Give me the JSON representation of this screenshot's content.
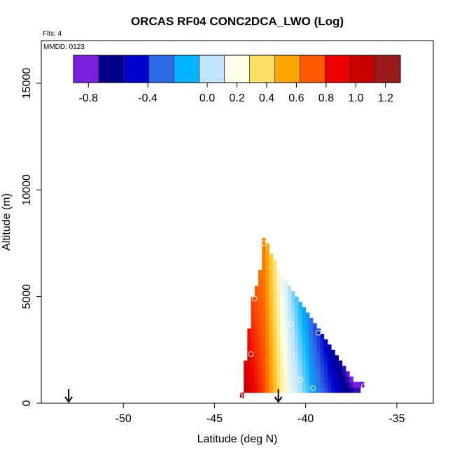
{
  "chart_data": {
    "type": "heatmap",
    "title": "ORCAS RF04 CONC2DCA_LWO (Log)",
    "annotations": {
      "flights": "Flts: 4",
      "date": "MMDD: 0123"
    },
    "xlabel": "Latitude (deg N)",
    "ylabel": "Altitude (m)",
    "xlim": [
      -54.5,
      -33.0
    ],
    "ylim": [
      0,
      17000
    ],
    "x_ticks": [
      -50,
      -45,
      -40,
      -35
    ],
    "x_tick_labels": [
      "-50",
      "-45",
      "-40",
      "-35"
    ],
    "y_ticks": [
      0,
      5000,
      10000,
      15000
    ],
    "y_tick_labels": [
      "0",
      "5000",
      "10000",
      "15000"
    ],
    "grid": false,
    "colorbar": {
      "range": [
        -0.9,
        1.3
      ],
      "tick_values": [
        -0.8,
        -0.4,
        0.0,
        0.2,
        0.4,
        0.6,
        0.8,
        1.0,
        1.2
      ],
      "tick_labels": [
        "-0.8",
        "-0.4",
        "0.0",
        "0.2",
        "0.4",
        "0.6",
        "0.8",
        "1.0",
        "1.2"
      ],
      "colors": [
        "#7a1fe0",
        "#00008b",
        "#0000cd",
        "#2f6ae8",
        "#00b4ff",
        "#bfe4ff",
        "#ffffe8",
        "#ffe066",
        "#ffa500",
        "#ff5a00",
        "#ee0000",
        "#c80000",
        "#9b1b1b"
      ]
    },
    "cells": {
      "lat_step": 0.2,
      "alt_step": 250,
      "columns": [
        {
          "lat": -43.6,
          "alt_min": 250,
          "alt_max": 500,
          "value": 1.25
        },
        {
          "lat": -43.4,
          "alt_min": 500,
          "alt_max": 2000,
          "value": 1.15
        },
        {
          "lat": -43.2,
          "alt_min": 500,
          "alt_max": 3500,
          "value": 1.05
        },
        {
          "lat": -43.0,
          "alt_min": 500,
          "alt_max": 5000,
          "value": 0.95
        },
        {
          "lat": -42.8,
          "alt_min": 500,
          "alt_max": 5500,
          "value": 0.9
        },
        {
          "lat": -42.6,
          "alt_min": 500,
          "alt_max": 6250,
          "value": 0.85
        },
        {
          "lat": -42.4,
          "alt_min": 500,
          "alt_max": 7750,
          "value": 0.8
        },
        {
          "lat": -42.2,
          "alt_min": 500,
          "alt_max": 7500,
          "value": 0.7
        },
        {
          "lat": -42.0,
          "alt_min": 500,
          "alt_max": 7000,
          "value": 0.6
        },
        {
          "lat": -41.8,
          "alt_min": 500,
          "alt_max": 6750,
          "value": 0.5
        },
        {
          "lat": -41.6,
          "alt_min": 500,
          "alt_max": 6250,
          "value": 0.4
        },
        {
          "lat": -41.4,
          "alt_min": 500,
          "alt_max": 6000,
          "value": 0.3
        },
        {
          "lat": -41.2,
          "alt_min": 500,
          "alt_max": 5750,
          "value": 0.25
        },
        {
          "lat": -41.0,
          "alt_min": 500,
          "alt_max": 5500,
          "value": 0.15
        },
        {
          "lat": -40.8,
          "alt_min": 500,
          "alt_max": 5250,
          "value": 0.1
        },
        {
          "lat": -40.6,
          "alt_min": 500,
          "alt_max": 5000,
          "value": 0.05
        },
        {
          "lat": -40.4,
          "alt_min": 500,
          "alt_max": 4750,
          "value": 0.0
        },
        {
          "lat": -40.2,
          "alt_min": 500,
          "alt_max": 4500,
          "value": -0.05
        },
        {
          "lat": -40.0,
          "alt_min": 500,
          "alt_max": 4250,
          "value": -0.1
        },
        {
          "lat": -39.8,
          "alt_min": 500,
          "alt_max": 4000,
          "value": -0.2
        },
        {
          "lat": -39.6,
          "alt_min": 500,
          "alt_max": 3750,
          "value": -0.25
        },
        {
          "lat": -39.4,
          "alt_min": 500,
          "alt_max": 3500,
          "value": -0.3
        },
        {
          "lat": -39.2,
          "alt_min": 500,
          "alt_max": 3250,
          "value": -0.35
        },
        {
          "lat": -39.0,
          "alt_min": 500,
          "alt_max": 3000,
          "value": -0.4
        },
        {
          "lat": -38.8,
          "alt_min": 500,
          "alt_max": 2750,
          "value": -0.45
        },
        {
          "lat": -38.6,
          "alt_min": 500,
          "alt_max": 2500,
          "value": -0.5
        },
        {
          "lat": -38.4,
          "alt_min": 500,
          "alt_max": 2250,
          "value": -0.55
        },
        {
          "lat": -38.2,
          "alt_min": 500,
          "alt_max": 2000,
          "value": -0.6
        },
        {
          "lat": -38.0,
          "alt_min": 500,
          "alt_max": 1750,
          "value": -0.65
        },
        {
          "lat": -37.8,
          "alt_min": 500,
          "alt_max": 1500,
          "value": -0.7
        },
        {
          "lat": -37.6,
          "alt_min": 500,
          "alt_max": 1250,
          "value": -0.75
        },
        {
          "lat": -37.4,
          "alt_min": 500,
          "alt_max": 1000,
          "value": -0.8
        },
        {
          "lat": -37.2,
          "alt_min": 500,
          "alt_max": 1000,
          "value": -0.8
        },
        {
          "lat": -37.0,
          "alt_min": 750,
          "alt_max": 1000,
          "value": -0.85
        }
      ]
    },
    "circle_markers": [
      {
        "lat": -42.3,
        "alt": 7500
      },
      {
        "lat": -41.3,
        "alt": 6300
      },
      {
        "lat": -42.8,
        "alt": 4900
      },
      {
        "lat": -40.8,
        "alt": 3700
      },
      {
        "lat": -39.3,
        "alt": 3300
      },
      {
        "lat": -43.0,
        "alt": 2300
      },
      {
        "lat": -40.3,
        "alt": 1100
      },
      {
        "lat": -39.6,
        "alt": 700
      },
      {
        "lat": -36.8,
        "alt": 800
      },
      {
        "lat": -43.6,
        "alt": 350
      }
    ],
    "arrow_markers": [
      {
        "lat": -53.0
      },
      {
        "lat": -41.5
      }
    ]
  }
}
